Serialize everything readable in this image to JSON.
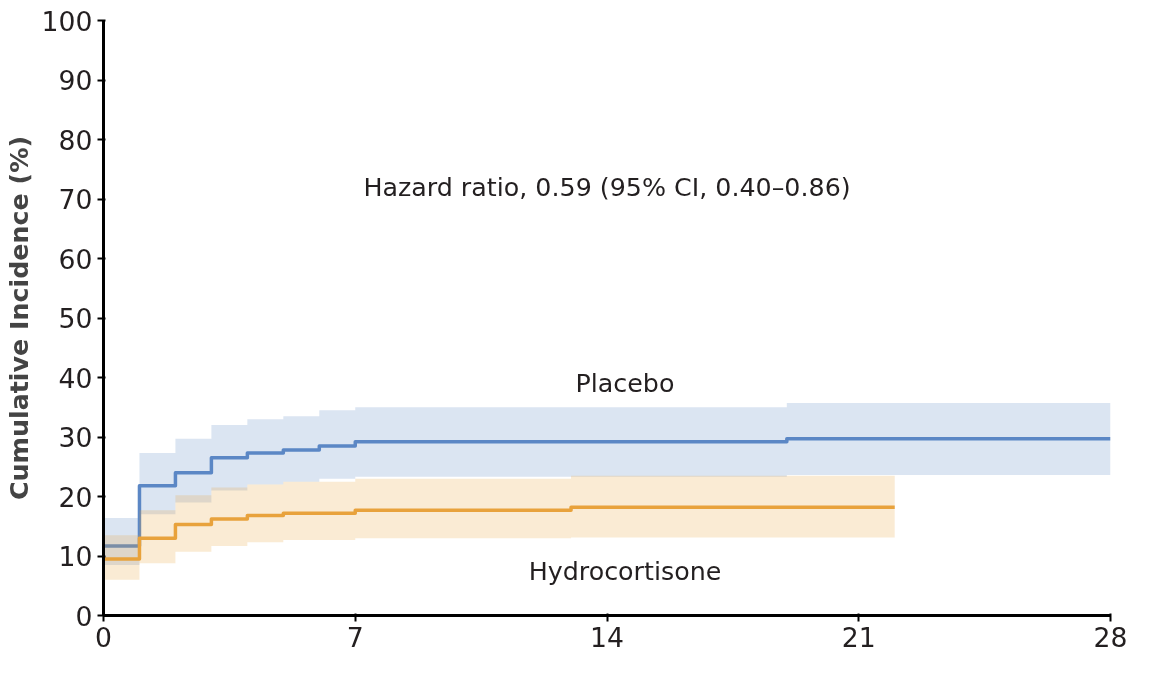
{
  "chart_data": {
    "type": "step",
    "ylabel": "Cumulative Incidence (%)",
    "annotations": [
      "Hazard ratio, 0.59 (95% CI, 0.40–0.86)"
    ],
    "xlim": [
      0,
      28
    ],
    "ylim": [
      0,
      100
    ],
    "xticks": [
      0,
      7,
      14,
      21,
      28
    ],
    "yticks": [
      0,
      10,
      20,
      30,
      40,
      50,
      60,
      70,
      80,
      90,
      100
    ],
    "grid": false,
    "marker": "none",
    "line_style": "solid",
    "series": [
      {
        "name": "Placebo",
        "color": "#5b87c5",
        "x": [
          0,
          1,
          2,
          3,
          4,
          5,
          6,
          7,
          19,
          28
        ],
        "values": [
          11.7,
          21.8,
          24,
          26.5,
          27.3,
          27.8,
          28.5,
          29.2,
          29.7,
          29.7
        ],
        "lower": [
          8.5,
          17,
          19,
          21,
          22,
          22.5,
          23,
          23.3,
          23.6,
          23.6
        ],
        "upper": [
          16.4,
          27.3,
          29.7,
          32,
          33,
          33.5,
          34.5,
          35,
          35.7,
          35.7
        ]
      },
      {
        "name": "Hydrocortisone",
        "color": "#e8a23c",
        "x": [
          0,
          1,
          2,
          3,
          4,
          5,
          7,
          13,
          22
        ],
        "values": [
          9.5,
          13,
          15.3,
          16.2,
          16.8,
          17.2,
          17.7,
          18.2,
          18.2
        ],
        "lower": [
          6,
          8.8,
          10.7,
          11.7,
          12.3,
          12.7,
          13,
          13.1,
          13.1
        ],
        "upper": [
          13.5,
          17.7,
          20.2,
          21.5,
          22,
          22.5,
          23,
          23.5,
          23.5
        ]
      }
    ]
  }
}
